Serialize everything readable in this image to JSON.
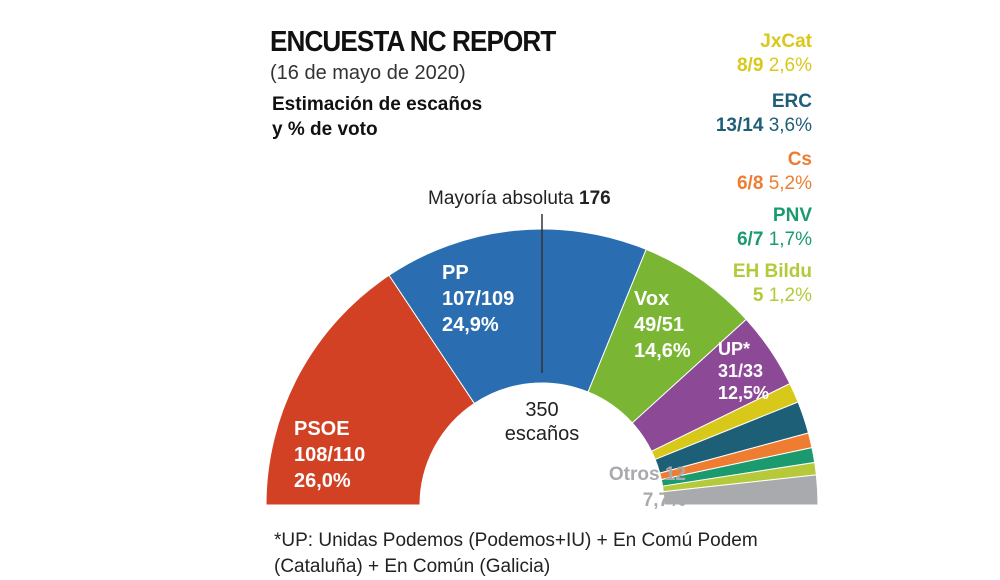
{
  "chart_data": {
    "type": "pie",
    "subtype": "hemicycle",
    "title": "ENCUESTA NC REPORT",
    "date": "(16 de mayo de 2020)",
    "subtitle_1": "Estimación de escaños",
    "subtitle_2": "y % de voto",
    "majority_label": "Mayoría absoluta",
    "majority_value": "176",
    "total_seats": "350",
    "total_label": "escaños",
    "series": [
      {
        "name": "PSOE",
        "seats": "108/110",
        "pct": "26,0%",
        "value": 108,
        "color": "#d24124"
      },
      {
        "name": "PP",
        "seats": "107/109",
        "pct": "24,9%",
        "value": 107,
        "color": "#2a6db0"
      },
      {
        "name": "Vox",
        "seats": "49/51",
        "pct": "14,6%",
        "value": 49,
        "color": "#7ab634"
      },
      {
        "name": "UP*",
        "seats": "31/33",
        "pct": "12,5%",
        "value": 31,
        "color": "#8c4a96"
      },
      {
        "name": "JxCat",
        "seats": "8/9",
        "pct": "2,6%",
        "value": 8,
        "color": "#d8c81a"
      },
      {
        "name": "ERC",
        "seats": "13/14",
        "pct": "3,6%",
        "value": 13,
        "color": "#1e5f78"
      },
      {
        "name": "Cs",
        "seats": "6/8",
        "pct": "5,2%",
        "value": 6,
        "color": "#ee7d32"
      },
      {
        "name": "PNV",
        "seats": "6/7",
        "pct": "1,7%",
        "value": 6,
        "color": "#1a9a6e"
      },
      {
        "name": "EH Bildu",
        "seats": "5",
        "pct": "1,2%",
        "value": 5,
        "color": "#b5c93a"
      },
      {
        "name": "Otros 12",
        "seats": "12",
        "pct": "7,7%",
        "value": 12,
        "color": "#a8aaad"
      }
    ],
    "footnote_1": "*UP: Unidas Podemos (Podemos+IU) + En Comú Podem",
    "footnote_2": "(Cataluña) + En Común (Galicia)"
  }
}
